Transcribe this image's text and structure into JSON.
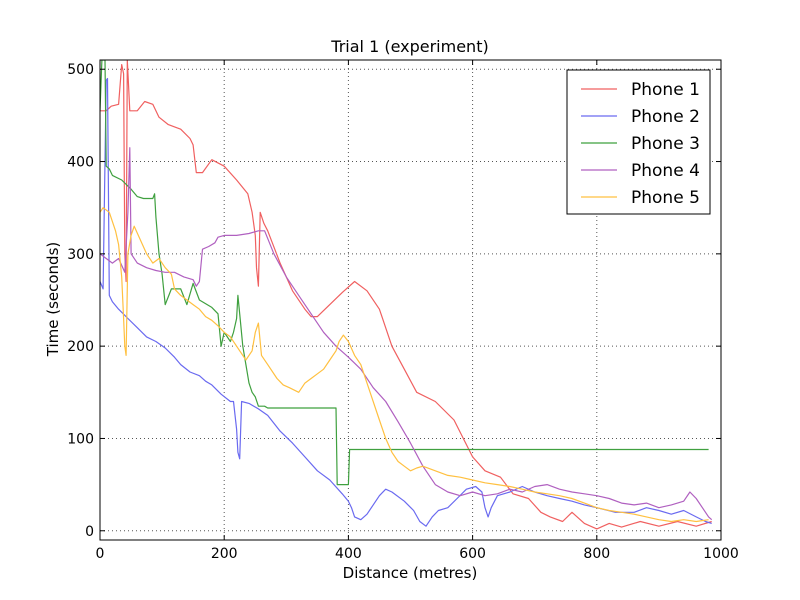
{
  "chart_data": {
    "type": "line",
    "title": "Trial 1 (experiment)",
    "xlabel": "Distance (metres)",
    "ylabel": "Time (seconds)",
    "xlim": [
      0,
      1000
    ],
    "ylim": [
      -10,
      510
    ],
    "xticks": [
      0,
      200,
      400,
      600,
      800,
      1000
    ],
    "yticks": [
      0,
      100,
      200,
      300,
      400,
      500
    ],
    "grid": true,
    "legend_position": "top-right",
    "series": [
      {
        "name": "Phone 1",
        "color": "#f06060",
        "points": [
          [
            0,
            455
          ],
          [
            10,
            455
          ],
          [
            18,
            460
          ],
          [
            30,
            462
          ],
          [
            35,
            505
          ],
          [
            38,
            495
          ],
          [
            40,
            300
          ],
          [
            42,
            270
          ],
          [
            44,
            510
          ],
          [
            48,
            455
          ],
          [
            60,
            455
          ],
          [
            72,
            465
          ],
          [
            85,
            462
          ],
          [
            95,
            448
          ],
          [
            110,
            440
          ],
          [
            130,
            435
          ],
          [
            145,
            425
          ],
          [
            150,
            418
          ],
          [
            155,
            388
          ],
          [
            165,
            388
          ],
          [
            180,
            402
          ],
          [
            200,
            395
          ],
          [
            220,
            380
          ],
          [
            238,
            365
          ],
          [
            245,
            345
          ],
          [
            250,
            320
          ],
          [
            252,
            285
          ],
          [
            255,
            265
          ],
          [
            258,
            345
          ],
          [
            264,
            333
          ],
          [
            270,
            325
          ],
          [
            290,
            290
          ],
          [
            310,
            260
          ],
          [
            330,
            240
          ],
          [
            340,
            232
          ],
          [
            350,
            232
          ],
          [
            370,
            245
          ],
          [
            390,
            258
          ],
          [
            410,
            270
          ],
          [
            430,
            260
          ],
          [
            450,
            240
          ],
          [
            470,
            200
          ],
          [
            490,
            175
          ],
          [
            510,
            150
          ],
          [
            540,
            140
          ],
          [
            570,
            120
          ],
          [
            600,
            80
          ],
          [
            620,
            65
          ],
          [
            645,
            58
          ],
          [
            665,
            40
          ],
          [
            690,
            35
          ],
          [
            710,
            20
          ],
          [
            725,
            15
          ],
          [
            745,
            10
          ],
          [
            760,
            20
          ],
          [
            780,
            8
          ],
          [
            800,
            2
          ],
          [
            820,
            8
          ],
          [
            840,
            4
          ],
          [
            870,
            10
          ],
          [
            900,
            5
          ],
          [
            930,
            10
          ],
          [
            960,
            5
          ],
          [
            985,
            10
          ]
        ]
      },
      {
        "name": "Phone 2",
        "color": "#6a6af0",
        "points": [
          [
            0,
            270
          ],
          [
            5,
            262
          ],
          [
            10,
            488
          ],
          [
            12,
            490
          ],
          [
            15,
            255
          ],
          [
            20,
            248
          ],
          [
            30,
            240
          ],
          [
            45,
            230
          ],
          [
            60,
            220
          ],
          [
            75,
            210
          ],
          [
            90,
            205
          ],
          [
            105,
            198
          ],
          [
            120,
            188
          ],
          [
            130,
            180
          ],
          [
            145,
            172
          ],
          [
            160,
            168
          ],
          [
            170,
            162
          ],
          [
            180,
            158
          ],
          [
            195,
            148
          ],
          [
            210,
            140
          ],
          [
            215,
            140
          ],
          [
            220,
            110
          ],
          [
            222,
            85
          ],
          [
            225,
            78
          ],
          [
            228,
            140
          ],
          [
            240,
            138
          ],
          [
            255,
            132
          ],
          [
            270,
            125
          ],
          [
            290,
            108
          ],
          [
            310,
            95
          ],
          [
            330,
            80
          ],
          [
            350,
            65
          ],
          [
            370,
            55
          ],
          [
            390,
            40
          ],
          [
            400,
            32
          ],
          [
            405,
            25
          ],
          [
            410,
            15
          ],
          [
            420,
            12
          ],
          [
            430,
            18
          ],
          [
            440,
            28
          ],
          [
            450,
            38
          ],
          [
            460,
            45
          ],
          [
            470,
            42
          ],
          [
            490,
            32
          ],
          [
            505,
            22
          ],
          [
            515,
            10
          ],
          [
            525,
            5
          ],
          [
            535,
            15
          ],
          [
            545,
            22
          ],
          [
            560,
            25
          ],
          [
            575,
            35
          ],
          [
            590,
            45
          ],
          [
            605,
            48
          ],
          [
            615,
            42
          ],
          [
            620,
            25
          ],
          [
            625,
            15
          ],
          [
            630,
            25
          ],
          [
            640,
            38
          ],
          [
            660,
            42
          ],
          [
            680,
            48
          ],
          [
            700,
            42
          ],
          [
            720,
            38
          ],
          [
            740,
            35
          ],
          [
            760,
            32
          ],
          [
            780,
            28
          ],
          [
            800,
            25
          ],
          [
            830,
            20
          ],
          [
            860,
            20
          ],
          [
            880,
            25
          ],
          [
            900,
            22
          ],
          [
            920,
            18
          ],
          [
            940,
            22
          ],
          [
            960,
            15
          ],
          [
            975,
            10
          ],
          [
            985,
            8
          ]
        ]
      },
      {
        "name": "Phone 3",
        "color": "#3fa03f",
        "points": [
          [
            0,
            455
          ],
          [
            3,
            510
          ],
          [
            8,
            510
          ],
          [
            10,
            395
          ],
          [
            15,
            392
          ],
          [
            20,
            385
          ],
          [
            35,
            380
          ],
          [
            50,
            370
          ],
          [
            60,
            362
          ],
          [
            70,
            360
          ],
          [
            85,
            360
          ],
          [
            88,
            365
          ],
          [
            90,
            340
          ],
          [
            95,
            300
          ],
          [
            100,
            278
          ],
          [
            105,
            245
          ],
          [
            115,
            262
          ],
          [
            130,
            262
          ],
          [
            140,
            245
          ],
          [
            150,
            268
          ],
          [
            160,
            250
          ],
          [
            180,
            242
          ],
          [
            190,
            235
          ],
          [
            195,
            200
          ],
          [
            200,
            215
          ],
          [
            210,
            205
          ],
          [
            215,
            215
          ],
          [
            220,
            230
          ],
          [
            222,
            255
          ],
          [
            225,
            235
          ],
          [
            230,
            200
          ],
          [
            235,
            180
          ],
          [
            240,
            160
          ],
          [
            245,
            150
          ],
          [
            250,
            145
          ],
          [
            255,
            135
          ],
          [
            265,
            135
          ],
          [
            270,
            133
          ],
          [
            280,
            133
          ],
          [
            380,
            133
          ],
          [
            382,
            50
          ],
          [
            400,
            50
          ],
          [
            402,
            88
          ],
          [
            980,
            88
          ]
        ]
      },
      {
        "name": "Phone 4",
        "color": "#b060c0",
        "points": [
          [
            0,
            300
          ],
          [
            10,
            295
          ],
          [
            20,
            290
          ],
          [
            30,
            295
          ],
          [
            40,
            280
          ],
          [
            45,
            345
          ],
          [
            48,
            415
          ],
          [
            50,
            300
          ],
          [
            60,
            290
          ],
          [
            75,
            285
          ],
          [
            90,
            282
          ],
          [
            105,
            280
          ],
          [
            120,
            280
          ],
          [
            135,
            275
          ],
          [
            150,
            272
          ],
          [
            155,
            265
          ],
          [
            160,
            270
          ],
          [
            165,
            305
          ],
          [
            175,
            308
          ],
          [
            185,
            312
          ],
          [
            190,
            318
          ],
          [
            200,
            320
          ],
          [
            220,
            320
          ],
          [
            240,
            322
          ],
          [
            255,
            325
          ],
          [
            265,
            325
          ],
          [
            280,
            300
          ],
          [
            300,
            275
          ],
          [
            320,
            255
          ],
          [
            340,
            235
          ],
          [
            360,
            215
          ],
          [
            380,
            200
          ],
          [
            400,
            188
          ],
          [
            420,
            175
          ],
          [
            440,
            155
          ],
          [
            460,
            140
          ],
          [
            480,
            118
          ],
          [
            500,
            95
          ],
          [
            520,
            70
          ],
          [
            540,
            50
          ],
          [
            560,
            42
          ],
          [
            580,
            38
          ],
          [
            600,
            42
          ],
          [
            620,
            38
          ],
          [
            640,
            40
          ],
          [
            660,
            45
          ],
          [
            680,
            42
          ],
          [
            700,
            48
          ],
          [
            720,
            50
          ],
          [
            740,
            45
          ],
          [
            760,
            42
          ],
          [
            780,
            40
          ],
          [
            800,
            38
          ],
          [
            820,
            35
          ],
          [
            840,
            30
          ],
          [
            860,
            28
          ],
          [
            880,
            30
          ],
          [
            900,
            25
          ],
          [
            920,
            28
          ],
          [
            940,
            32
          ],
          [
            950,
            42
          ],
          [
            960,
            35
          ],
          [
            970,
            25
          ],
          [
            980,
            15
          ],
          [
            985,
            12
          ]
        ]
      },
      {
        "name": "Phone 5",
        "color": "#ffc040",
        "points": [
          [
            0,
            345
          ],
          [
            5,
            350
          ],
          [
            15,
            345
          ],
          [
            25,
            325
          ],
          [
            30,
            310
          ],
          [
            35,
            275
          ],
          [
            38,
            230
          ],
          [
            40,
            200
          ],
          [
            42,
            190
          ],
          [
            45,
            300
          ],
          [
            50,
            320
          ],
          [
            55,
            330
          ],
          [
            65,
            315
          ],
          [
            75,
            300
          ],
          [
            85,
            290
          ],
          [
            95,
            295
          ],
          [
            105,
            285
          ],
          [
            115,
            278
          ],
          [
            120,
            262
          ],
          [
            130,
            255
          ],
          [
            140,
            250
          ],
          [
            150,
            245
          ],
          [
            160,
            240
          ],
          [
            170,
            232
          ],
          [
            180,
            228
          ],
          [
            190,
            222
          ],
          [
            200,
            215
          ],
          [
            210,
            210
          ],
          [
            220,
            200
          ],
          [
            235,
            185
          ],
          [
            245,
            195
          ],
          [
            250,
            215
          ],
          [
            255,
            225
          ],
          [
            260,
            190
          ],
          [
            270,
            180
          ],
          [
            285,
            165
          ],
          [
            295,
            158
          ],
          [
            305,
            155
          ],
          [
            320,
            150
          ],
          [
            330,
            160
          ],
          [
            340,
            165
          ],
          [
            350,
            170
          ],
          [
            360,
            175
          ],
          [
            370,
            185
          ],
          [
            380,
            195
          ],
          [
            385,
            205
          ],
          [
            392,
            212
          ],
          [
            400,
            205
          ],
          [
            410,
            190
          ],
          [
            420,
            180
          ],
          [
            435,
            150
          ],
          [
            450,
            120
          ],
          [
            460,
            100
          ],
          [
            470,
            85
          ],
          [
            480,
            75
          ],
          [
            490,
            70
          ],
          [
            500,
            65
          ],
          [
            510,
            68
          ],
          [
            520,
            70
          ],
          [
            540,
            65
          ],
          [
            560,
            60
          ],
          [
            580,
            58
          ],
          [
            600,
            55
          ],
          [
            620,
            52
          ],
          [
            640,
            50
          ],
          [
            660,
            48
          ],
          [
            680,
            45
          ],
          [
            700,
            42
          ],
          [
            720,
            40
          ],
          [
            740,
            38
          ],
          [
            760,
            35
          ],
          [
            780,
            30
          ],
          [
            800,
            25
          ],
          [
            820,
            22
          ],
          [
            840,
            20
          ],
          [
            860,
            18
          ],
          [
            880,
            15
          ],
          [
            900,
            12
          ],
          [
            920,
            10
          ],
          [
            940,
            12
          ],
          [
            960,
            10
          ],
          [
            980,
            12
          ]
        ]
      }
    ]
  }
}
